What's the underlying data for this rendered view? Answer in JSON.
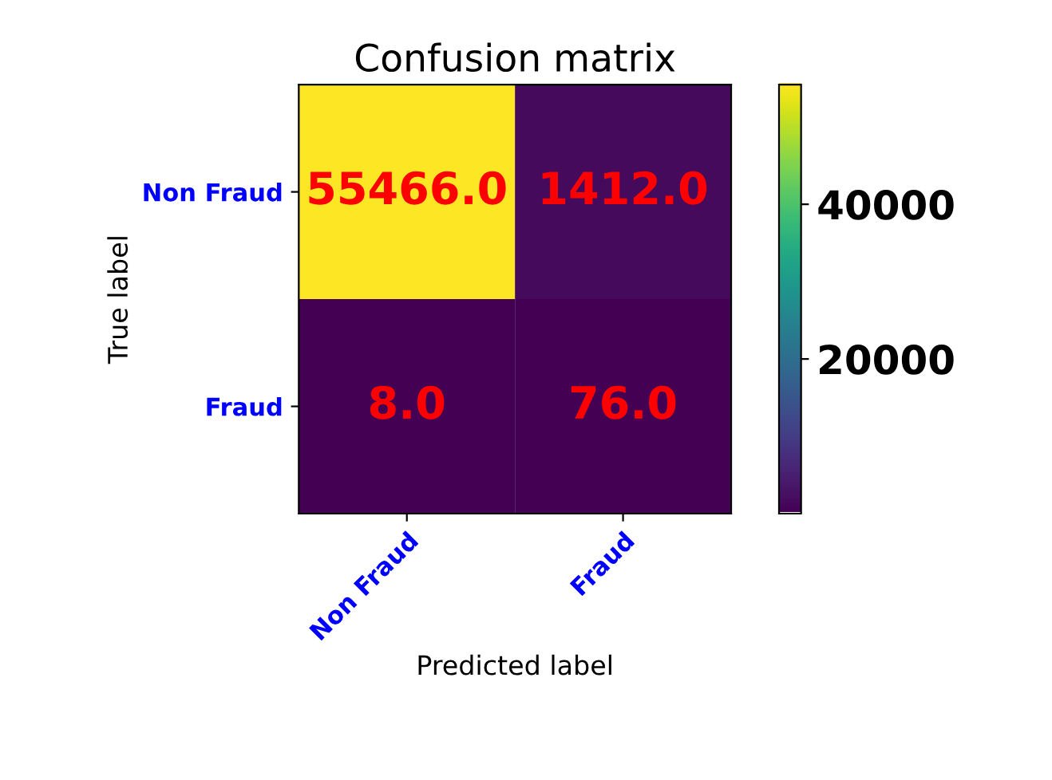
{
  "chart_data": {
    "type": "heatmap",
    "title": "Confusion matrix",
    "xlabel": "Predicted label",
    "ylabel": "True label",
    "categories": [
      "Non Fraud",
      "Fraud"
    ],
    "y_categories": [
      "Non Fraud",
      "Fraud"
    ],
    "cells": [
      [
        55466,
        1412
      ],
      [
        8,
        76
      ]
    ],
    "cell_labels": [
      [
        "55466.0",
        "1412.0"
      ],
      [
        "8.0",
        "76.0"
      ]
    ],
    "clim": [
      8,
      55466
    ],
    "cticks": [
      20000,
      40000
    ]
  }
}
